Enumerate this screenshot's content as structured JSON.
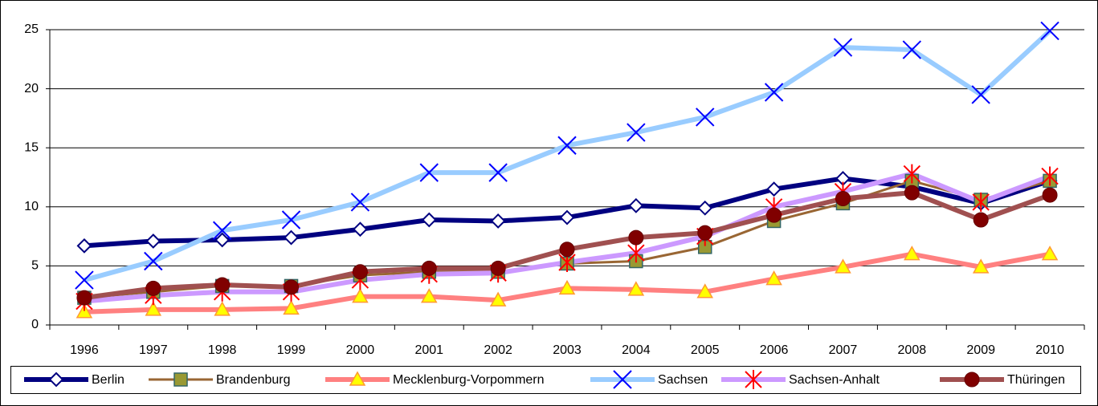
{
  "chart_data": {
    "type": "line",
    "categories": [
      "1996",
      "1997",
      "1998",
      "1999",
      "2000",
      "2001",
      "2002",
      "2003",
      "2004",
      "2005",
      "2006",
      "2007",
      "2008",
      "2009",
      "2010"
    ],
    "ylim": [
      0,
      25
    ],
    "yticks": [
      0,
      5,
      10,
      15,
      20,
      25
    ],
    "grid": true,
    "legend": "bottom",
    "series": [
      {
        "name": "Berlin",
        "color": "#000080",
        "marker_color": "#ffffff",
        "values": [
          6.7,
          7.1,
          7.2,
          7.4,
          8.1,
          8.9,
          8.8,
          9.1,
          10.1,
          9.9,
          11.5,
          12.4,
          11.7,
          10.3,
          12.2
        ]
      },
      {
        "name": "Brandenburg",
        "color": "#996633",
        "marker_color": "#999933",
        "values": [
          2.3,
          2.8,
          3.3,
          3.3,
          4.2,
          4.5,
          4.5,
          5.2,
          5.4,
          6.6,
          8.8,
          10.3,
          12.2,
          10.6,
          12.2
        ]
      },
      {
        "name": "Mecklenburg-Vorpommern",
        "color": "#ff8080",
        "marker_color": "#ffff00",
        "values": [
          1.1,
          1.3,
          1.3,
          1.4,
          2.4,
          2.4,
          2.1,
          3.1,
          3.0,
          2.8,
          3.9,
          4.9,
          6.0,
          4.9,
          6.0
        ]
      },
      {
        "name": "Sachsen",
        "color": "#99ccff",
        "marker_color": "#0000ff",
        "values": [
          3.8,
          5.4,
          8.0,
          8.9,
          10.4,
          12.9,
          12.9,
          15.2,
          16.3,
          17.6,
          19.7,
          23.5,
          23.3,
          19.5,
          24.9
        ]
      },
      {
        "name": "Sachsen-Anhalt",
        "color": "#cc99ff",
        "marker_color": "#ff0000",
        "values": [
          2.0,
          2.5,
          2.8,
          2.8,
          3.8,
          4.3,
          4.4,
          5.3,
          6.1,
          7.5,
          10.0,
          11.3,
          12.8,
          10.4,
          12.6
        ]
      },
      {
        "name": "Thüringen",
        "color": "#a05050",
        "marker_color": "#800000",
        "values": [
          2.3,
          3.1,
          3.4,
          3.2,
          4.5,
          4.8,
          4.8,
          6.4,
          7.4,
          7.8,
          9.3,
          10.7,
          11.2,
          8.9,
          11.0
        ]
      }
    ]
  }
}
